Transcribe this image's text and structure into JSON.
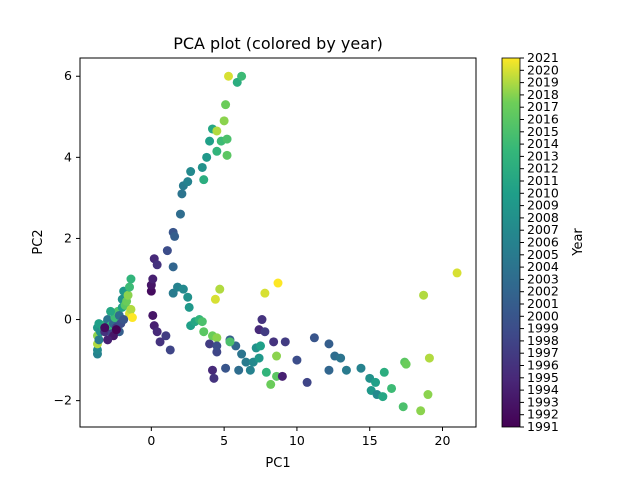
{
  "chart_data": {
    "type": "scatter",
    "title": "PCA plot (colored by year)",
    "xlabel": "PC1",
    "ylabel": "PC2",
    "xlim": [
      -4.9,
      22.3
    ],
    "ylim": [
      -2.65,
      6.45
    ],
    "xticks": [
      0,
      5,
      10,
      15,
      20
    ],
    "yticks": [
      -2,
      0,
      2,
      4,
      6
    ],
    "grid": false,
    "colorbar": {
      "label": "Year",
      "colormap": "viridis",
      "min": 1991,
      "max": 2021,
      "ticks": [
        1991,
        1992,
        1993,
        1994,
        1995,
        1996,
        1997,
        1998,
        1999,
        2000,
        2001,
        2002,
        2003,
        2004,
        2005,
        2006,
        2007,
        2008,
        2009,
        2010,
        2011,
        2012,
        2013,
        2014,
        2015,
        2016,
        2017,
        2018,
        2019,
        2020,
        2021
      ]
    },
    "points": [
      [
        -3.7,
        -0.85,
        2006
      ],
      [
        -3.7,
        -0.75,
        2007
      ],
      [
        -3.7,
        -0.6,
        2019
      ],
      [
        -3.7,
        -0.4,
        2018
      ],
      [
        -3.7,
        -0.2,
        2009
      ],
      [
        -3.6,
        -0.1,
        2010
      ],
      [
        -3.6,
        -0.5,
        2005
      ],
      [
        -3.5,
        -0.3,
        2008
      ],
      [
        -3.3,
        -0.2,
        2011
      ],
      [
        -3.2,
        -0.3,
        1996
      ],
      [
        -3.1,
        -0.1,
        2012
      ],
      [
        -3.0,
        0.0,
        2004
      ],
      [
        -2.9,
        -0.25,
        1995
      ],
      [
        -2.8,
        -0.15,
        2013
      ],
      [
        -2.7,
        -0.35,
        1998
      ],
      [
        -2.6,
        -0.1,
        2002
      ],
      [
        -2.5,
        0.05,
        2014
      ],
      [
        -2.4,
        -0.2,
        1997
      ],
      [
        -2.3,
        0.2,
        2015
      ],
      [
        -2.2,
        0.1,
        2003
      ],
      [
        -2.1,
        -0.1,
        1999
      ],
      [
        -2.0,
        0.3,
        2010
      ],
      [
        -2.0,
        0.5,
        2008
      ],
      [
        -1.9,
        0.7,
        2009
      ],
      [
        -1.8,
        0.35,
        2016
      ],
      [
        -1.7,
        0.45,
        2017
      ],
      [
        -1.6,
        0.6,
        2018
      ],
      [
        -1.5,
        0.8,
        2014
      ],
      [
        -1.5,
        0.15,
        2020
      ],
      [
        -1.4,
        1.0,
        2013
      ],
      [
        -1.4,
        0.25,
        2019
      ],
      [
        -1.3,
        0.05,
        2021
      ],
      [
        -1.9,
        0.0,
        2000
      ],
      [
        -2.2,
        -0.3,
        2001
      ],
      [
        -2.6,
        -0.4,
        1993
      ],
      [
        -3.0,
        -0.5,
        1994
      ],
      [
        0.0,
        0.7,
        1992
      ],
      [
        0.0,
        0.85,
        1993
      ],
      [
        0.1,
        1.0,
        1994
      ],
      [
        0.2,
        1.5,
        1995
      ],
      [
        0.4,
        1.35,
        1996
      ],
      [
        1.1,
        1.7,
        1999
      ],
      [
        1.5,
        2.15,
        2000
      ],
      [
        1.6,
        2.05,
        2001
      ],
      [
        1.5,
        1.3,
        2002
      ],
      [
        2.0,
        2.6,
        2003
      ],
      [
        2.1,
        3.1,
        2004
      ],
      [
        2.2,
        3.3,
        2005
      ],
      [
        2.5,
        3.4,
        2006
      ],
      [
        2.7,
        3.65,
        2007
      ],
      [
        3.5,
        3.75,
        2008
      ],
      [
        3.8,
        4.0,
        2009
      ],
      [
        4.0,
        4.4,
        2010
      ],
      [
        4.2,
        4.7,
        2011
      ],
      [
        3.6,
        3.45,
        2012
      ],
      [
        4.5,
        4.15,
        2013
      ],
      [
        4.8,
        4.4,
        2014
      ],
      [
        5.2,
        4.45,
        2015
      ],
      [
        5.2,
        4.05,
        2016
      ],
      [
        5.1,
        5.3,
        2017
      ],
      [
        5.0,
        4.9,
        2018
      ],
      [
        4.5,
        4.65,
        2019
      ],
      [
        5.3,
        6.0,
        2020
      ],
      [
        5.9,
        5.85,
        2012
      ],
      [
        6.2,
        6.0,
        2014
      ],
      [
        0.1,
        0.1,
        1993
      ],
      [
        0.2,
        -0.15,
        1994
      ],
      [
        0.4,
        -0.3,
        1995
      ],
      [
        0.6,
        -0.55,
        1996
      ],
      [
        1.0,
        -0.4,
        1997
      ],
      [
        1.3,
        -0.75,
        1998
      ],
      [
        1.5,
        0.65,
        2005
      ],
      [
        1.8,
        0.8,
        2006
      ],
      [
        2.2,
        0.75,
        2007
      ],
      [
        2.5,
        0.55,
        2008
      ],
      [
        2.6,
        0.3,
        2009
      ],
      [
        2.7,
        -0.15,
        2010
      ],
      [
        3.0,
        -0.05,
        2011
      ],
      [
        3.3,
        0.0,
        2013
      ],
      [
        3.5,
        -0.05,
        2015
      ],
      [
        3.6,
        -0.3,
        2016
      ],
      [
        4.0,
        -0.6,
        1997
      ],
      [
        4.2,
        -0.4,
        2017
      ],
      [
        4.5,
        -0.45,
        2018
      ],
      [
        4.7,
        0.75,
        2019
      ],
      [
        4.4,
        0.5,
        2020
      ],
      [
        4.2,
        -1.25,
        1995
      ],
      [
        4.3,
        -1.45,
        1996
      ],
      [
        4.5,
        -0.8,
        1998
      ],
      [
        4.5,
        -0.65,
        1999
      ],
      [
        5.1,
        -1.2,
        2000
      ],
      [
        5.4,
        -0.5,
        2001
      ],
      [
        5.8,
        -0.65,
        2002
      ],
      [
        6.0,
        -1.25,
        2003
      ],
      [
        6.2,
        -0.85,
        2004
      ],
      [
        6.5,
        -1.05,
        2005
      ],
      [
        6.8,
        -1.25,
        2006
      ],
      [
        7.0,
        -1.05,
        2007
      ],
      [
        7.2,
        -0.7,
        2008
      ],
      [
        7.4,
        -0.95,
        2009
      ],
      [
        7.5,
        -0.65,
        2010
      ],
      [
        7.4,
        -0.25,
        1995
      ],
      [
        7.6,
        0.0,
        1996
      ],
      [
        7.8,
        -0.3,
        1997
      ],
      [
        7.8,
        0.65,
        2020
      ],
      [
        7.9,
        -1.3,
        2013
      ],
      [
        8.2,
        -1.6,
        2017
      ],
      [
        8.4,
        -0.55,
        1996
      ],
      [
        8.6,
        -0.9,
        2018
      ],
      [
        8.6,
        -1.4,
        2016
      ],
      [
        8.7,
        0.9,
        2021
      ],
      [
        9.0,
        -1.4,
        1994
      ],
      [
        9.2,
        -0.55,
        1997
      ],
      [
        10.0,
        -1.0,
        1999
      ],
      [
        10.7,
        -1.55,
        1998
      ],
      [
        11.2,
        -0.45,
        2000
      ],
      [
        12.2,
        -0.6,
        2001
      ],
      [
        12.2,
        -1.25,
        2002
      ],
      [
        12.6,
        -0.9,
        2003
      ],
      [
        13.0,
        -0.95,
        2004
      ],
      [
        13.4,
        -1.25,
        2005
      ],
      [
        14.4,
        -1.2,
        2006
      ],
      [
        15.0,
        -1.45,
        2008
      ],
      [
        15.1,
        -1.75,
        2009
      ],
      [
        15.4,
        -1.55,
        2010
      ],
      [
        15.5,
        -1.85,
        2007
      ],
      [
        15.9,
        -1.9,
        2011
      ],
      [
        16.0,
        -1.3,
        2012
      ],
      [
        16.5,
        -1.7,
        2014
      ],
      [
        17.3,
        -2.15,
        2015
      ],
      [
        17.4,
        -1.05,
        2016
      ],
      [
        17.5,
        -1.1,
        2017
      ],
      [
        18.5,
        -2.25,
        2018
      ],
      [
        18.7,
        0.6,
        2019
      ],
      [
        19.1,
        -0.95,
        2019
      ],
      [
        19.0,
        -1.85,
        2018
      ],
      [
        21.0,
        1.15,
        2020
      ],
      [
        -3.2,
        -0.2,
        1992
      ],
      [
        -2.4,
        -0.25,
        1991
      ],
      [
        -2.8,
        0.2,
        2011
      ],
      [
        5.4,
        -0.55,
        2015
      ]
    ]
  }
}
